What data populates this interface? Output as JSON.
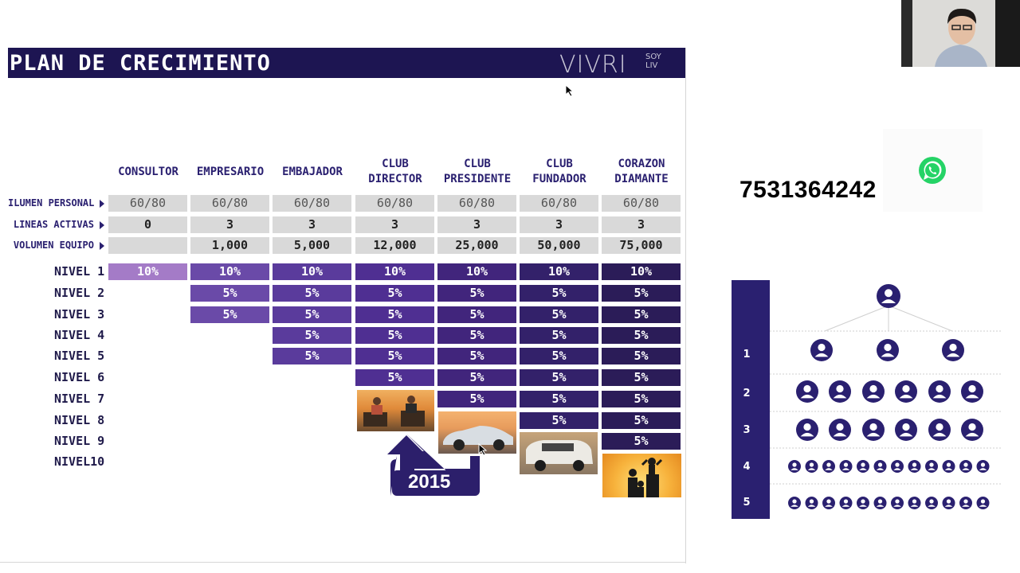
{
  "slide": {
    "title": "PLAN DE CRECIMIENTO",
    "brand": {
      "name": "VIVRI",
      "sub_top": "SOY",
      "sub_bottom": "LIV"
    },
    "categories": [
      {
        "lines": [
          "CONSULTOR"
        ]
      },
      {
        "lines": [
          "EMPRESARIO"
        ]
      },
      {
        "lines": [
          "EMBAJADOR"
        ]
      },
      {
        "lines": [
          "CLUB",
          "DIRECTOR"
        ]
      },
      {
        "lines": [
          "CLUB",
          "PRESIDENTE"
        ]
      },
      {
        "lines": [
          "CLUB",
          "FUNDADOR"
        ]
      },
      {
        "lines": [
          "CORAZON",
          "DIAMANTE"
        ]
      }
    ],
    "requirements": [
      {
        "label": "ILUMEN PERSONAL",
        "values": [
          "60/80",
          "60/80",
          "60/80",
          "60/80",
          "60/80",
          "60/80",
          "60/80"
        ]
      },
      {
        "label": "LINEAS ACTIVAS",
        "values": [
          "0",
          "3",
          "3",
          "3",
          "3",
          "3",
          "3"
        ]
      },
      {
        "label": "VOLUMEN EQUIPO",
        "values": [
          "",
          "1,000",
          "5,000",
          "12,000",
          "25,000",
          "50,000",
          "75,000"
        ]
      }
    ],
    "levels": [
      {
        "label": "NIVEL 1",
        "values": [
          "10%",
          "10%",
          "10%",
          "10%",
          "10%",
          "10%",
          "10%"
        ]
      },
      {
        "label": "NIVEL 2",
        "values": [
          "",
          "5%",
          "5%",
          "5%",
          "5%",
          "5%",
          "5%"
        ]
      },
      {
        "label": "NIVEL 3",
        "values": [
          "",
          "5%",
          "5%",
          "5%",
          "5%",
          "5%",
          "5%"
        ]
      },
      {
        "label": "NIVEL 4",
        "values": [
          "",
          "",
          "5%",
          "5%",
          "5%",
          "5%",
          "5%"
        ]
      },
      {
        "label": "NIVEL 5",
        "values": [
          "",
          "",
          "5%",
          "5%",
          "5%",
          "5%",
          "5%"
        ]
      },
      {
        "label": "NIVEL 6",
        "values": [
          "",
          "",
          "",
          "5%",
          "5%",
          "5%",
          "5%"
        ]
      },
      {
        "label": "NIVEL 7",
        "values": [
          "",
          "",
          "",
          "",
          "5%",
          "5%",
          "5%"
        ]
      },
      {
        "label": "NIVEL 8",
        "values": [
          "",
          "",
          "",
          "",
          "",
          "5%",
          "5%"
        ]
      },
      {
        "label": "NIVEL 9",
        "values": [
          "",
          "",
          "",
          "",
          "",
          "",
          "5%"
        ]
      },
      {
        "label": "NIVEL10",
        "values": [
          "",
          "",
          "",
          "",
          "",
          "",
          ""
        ]
      }
    ],
    "year_badge": "2015",
    "colors": [
      "#a47bc7",
      "#6a4aa8",
      "#5a3b9c",
      "#4f2f92",
      "#41257c",
      "#33216a",
      "#2b1c58"
    ]
  },
  "contact": {
    "phone": "7531364242",
    "icon": "whatsapp-icon"
  },
  "tree": {
    "levels": [
      "1",
      "2",
      "3",
      "4",
      "5"
    ]
  }
}
